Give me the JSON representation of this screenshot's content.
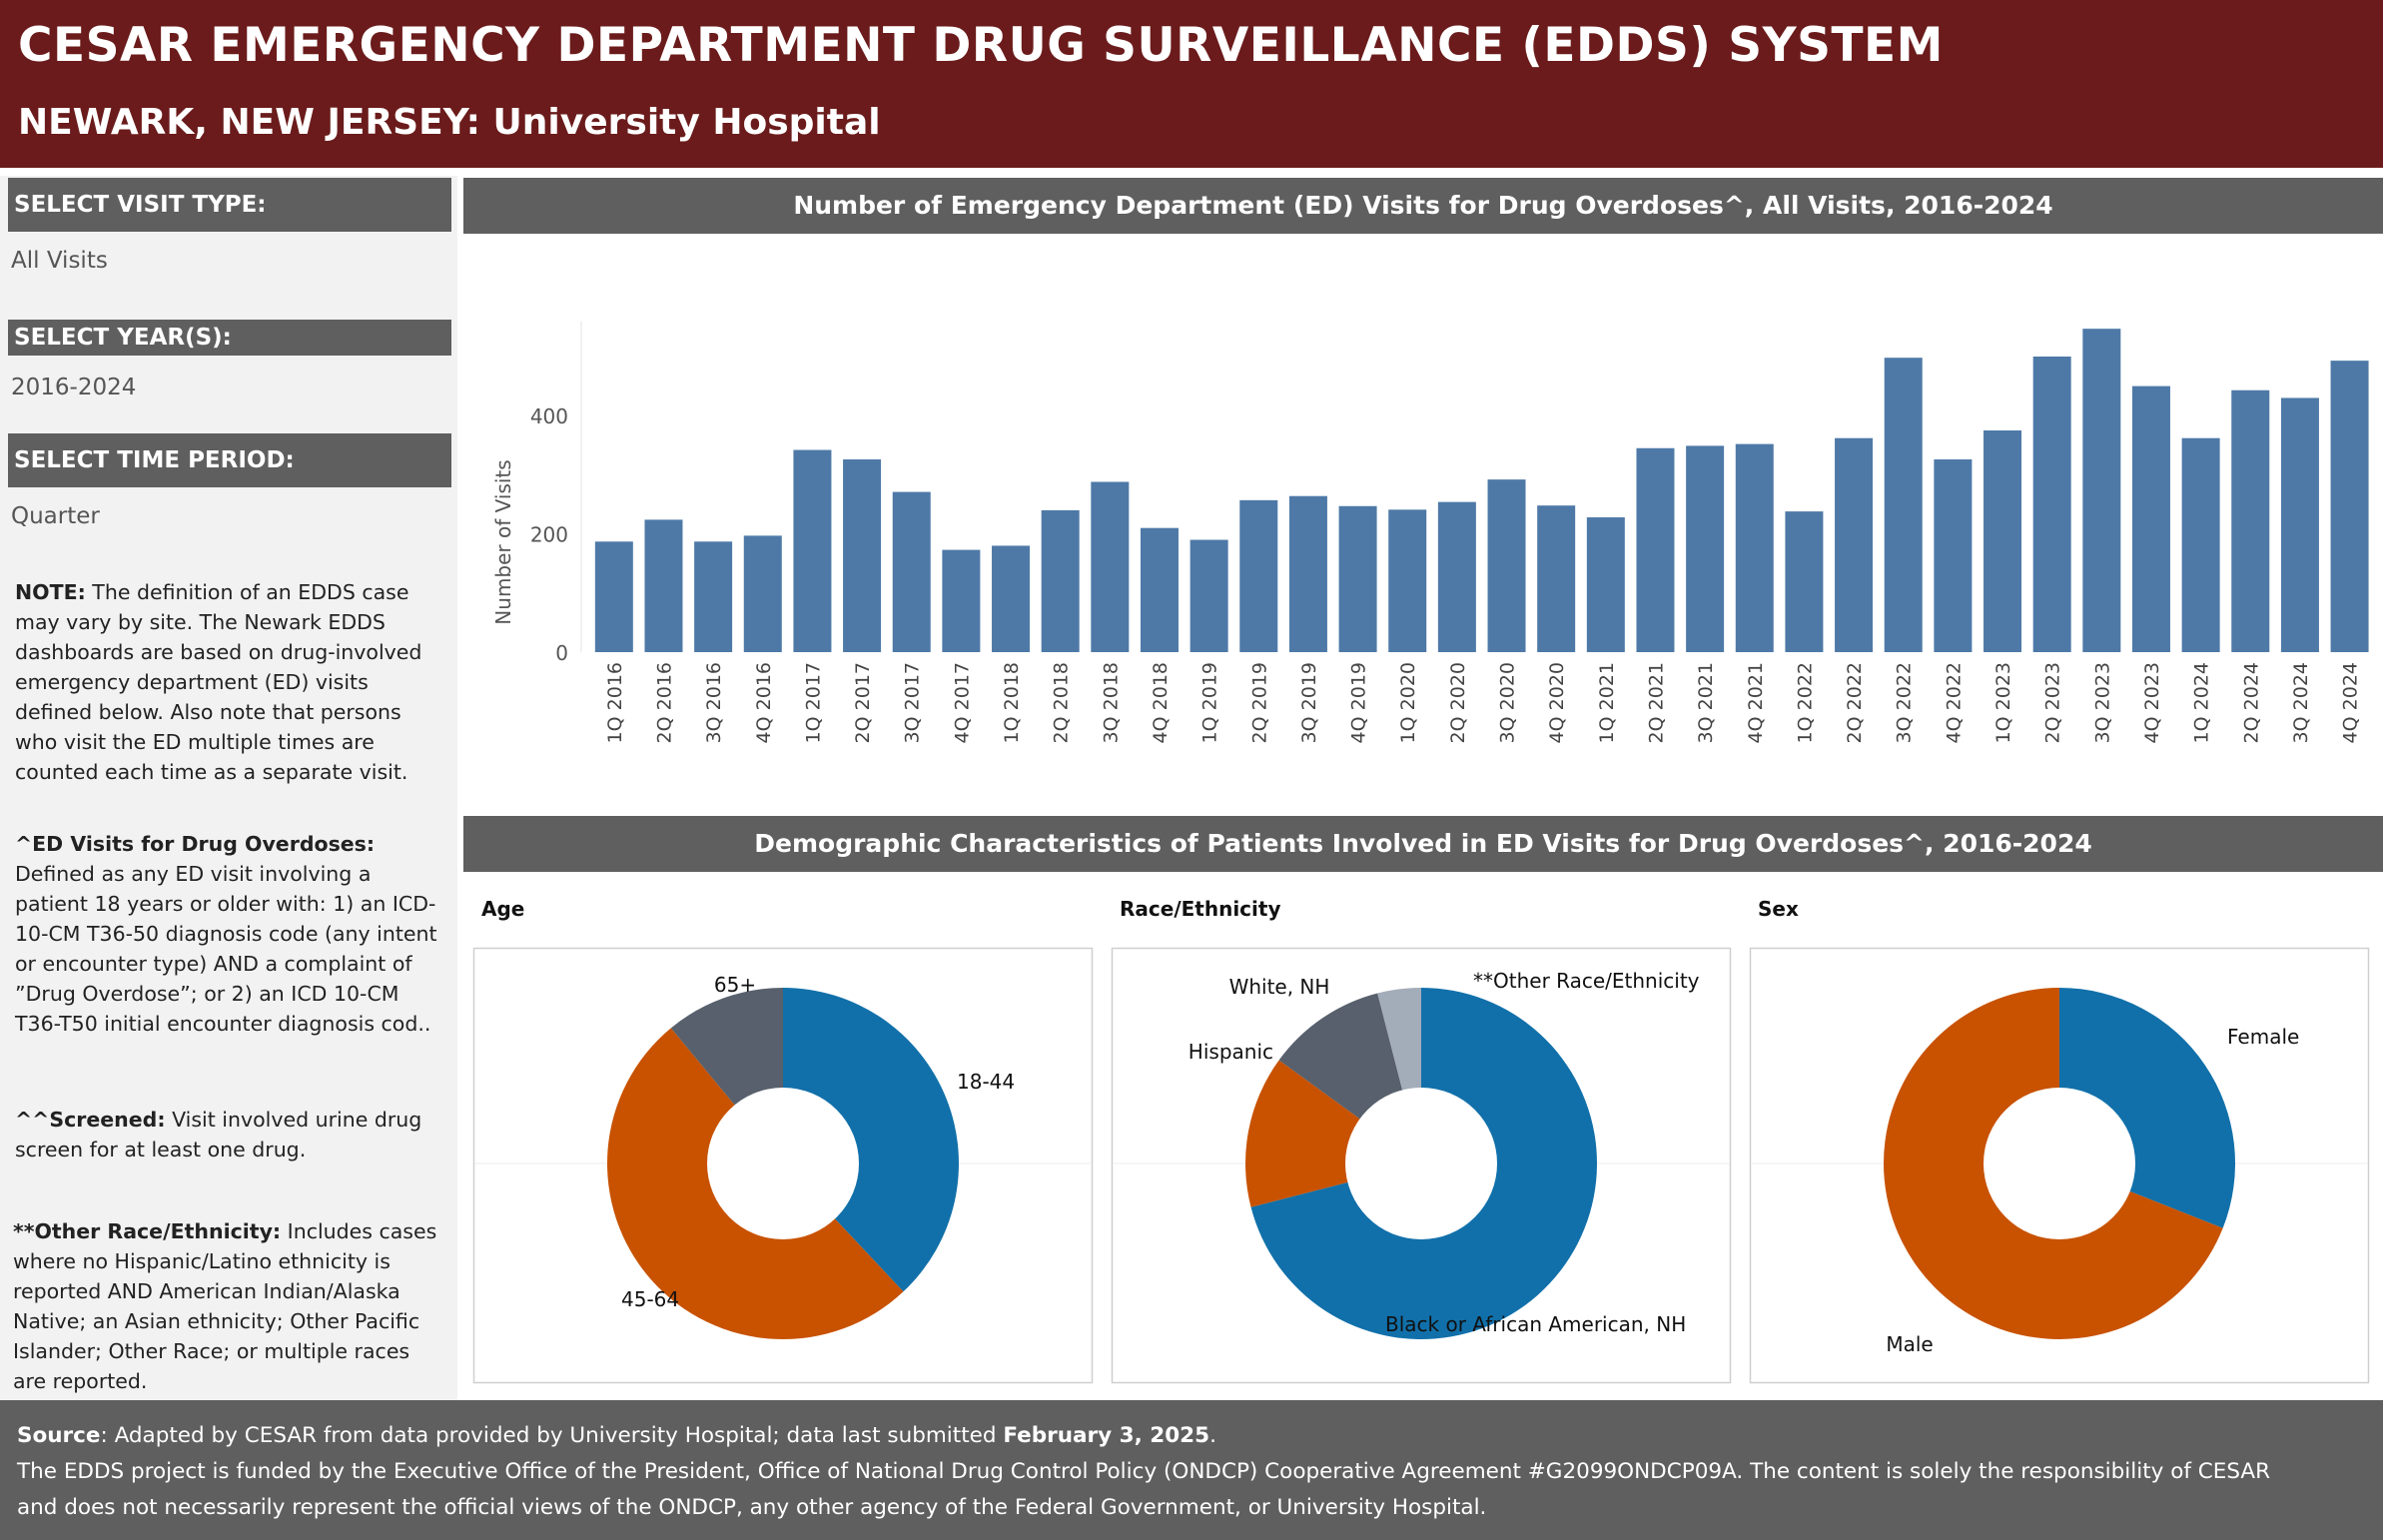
{
  "header": {
    "title": "CESAR EMERGENCY DEPARTMENT DRUG SURVEILLANCE (EDDS) SYSTEM",
    "subtitle": "NEWARK, NEW JERSEY: University Hospital"
  },
  "sidebar": {
    "visit_type_label": "SELECT VISIT TYPE:",
    "visit_type_value": "All Visits",
    "years_label": "SELECT YEAR(S):",
    "years_value": "2016-2024",
    "period_label": "SELECT TIME PERIOD:",
    "period_value": "Quarter",
    "notes": [
      {
        "head": "NOTE:",
        "text": " The definition of an EDDS case may vary by site. The Newark EDDS dashboards are based on drug-involved emergency department (ED) visits defined below. Also note that persons who visit the ED multiple times are counted each time as a separate visit."
      },
      {
        "head": "^ED Visits for Drug Overdoses:",
        "text": " Defined as any ED visit involving a patient 18 years or older with: 1) an ICD-10-CM T36-50 diagnosis code (any intent or encounter type) AND a complaint of ”Drug Overdose”; or  2) an ICD 10-CM T36-T50 initial encounter diagnosis cod.."
      },
      {
        "head": "^^Screened:",
        "text": " Visit involved urine drug screen for at least one drug."
      },
      {
        "head": "**Other Race/Ethnicity:",
        "text": " Includes cases where no Hispanic/Latino ethnicity is reported AND American Indian/Alaska Native; an Asian ethnicity; Other Pacific Islander; Other Race; or multiple races are reported."
      }
    ]
  },
  "bar_panel": {
    "title": "Number of Emergency Department (ED) Visits for Drug Overdoses^, All Visits, 2016-2024"
  },
  "demo_panel": {
    "title": "Demographic Characteristics of Patients Involved in ED Visits for Drug Overdoses^, 2016-2024"
  },
  "footer": {
    "source_head": "Source",
    "source_text": ": Adapted by CESAR from data provided by University Hospital; data last submitted ",
    "source_date": "February 3, 2025",
    "source_end": ".",
    "line2": "The EDDS project is funded by the Executive Office of the President, Office of National Drug Control Policy (ONDCP) Cooperative Agreement #G2099ONDCP09A. The content is solely the responsibility of CESAR",
    "line3": "and does not necessarily represent the official views of the ONDCP, any other agency of the Federal Government, or University Hospital."
  },
  "colors": {
    "bar": "#4e79a7",
    "blue": "#1170aa",
    "orange": "#c85200",
    "dark_gray": "#57606c",
    "light_gray": "#a3acb9",
    "header_bg": "#6b1b1b",
    "panel_gray": "#5f5f5f"
  },
  "chart_data": [
    {
      "type": "bar",
      "ylabel": "Number of Visits",
      "yticks": [
        0,
        200,
        400
      ],
      "ylim": [
        0,
        560
      ],
      "grid": false,
      "categories": [
        "1Q 2016",
        "2Q 2016",
        "3Q 2016",
        "4Q 2016",
        "1Q 2017",
        "2Q 2017",
        "3Q 2017",
        "4Q 2017",
        "1Q 2018",
        "2Q 2018",
        "3Q 2018",
        "4Q 2018",
        "1Q 2019",
        "2Q 2019",
        "3Q 2019",
        "4Q 2019",
        "1Q 2020",
        "2Q 2020",
        "3Q 2020",
        "4Q 2020",
        "1Q 2021",
        "2Q 2021",
        "3Q 2021",
        "4Q 2021",
        "1Q 2022",
        "2Q 2022",
        "3Q 2022",
        "4Q 2022",
        "1Q 2023",
        "2Q 2023",
        "3Q 2023",
        "4Q 2023",
        "1Q 2024",
        "2Q 2024",
        "3Q 2024",
        "4Q 2024"
      ],
      "values": [
        187,
        224,
        187,
        197,
        342,
        326,
        271,
        173,
        180,
        240,
        288,
        210,
        190,
        257,
        264,
        247,
        241,
        254,
        292,
        248,
        228,
        345,
        349,
        352,
        238,
        362,
        498,
        326,
        375,
        500,
        547,
        450,
        362,
        443,
        430,
        493
      ]
    },
    {
      "type": "pie",
      "title": "Age",
      "labels": [
        "18-44",
        "45-64",
        "65+"
      ],
      "values": [
        38,
        51,
        11
      ],
      "colors": [
        "#1170aa",
        "#c85200",
        "#57606c"
      ]
    },
    {
      "type": "pie",
      "title": "Race/Ethnicity",
      "labels": [
        "Black or African American, NH",
        "Hispanic",
        "White, NH",
        "**Other Race/Ethnicity"
      ],
      "values": [
        71,
        14,
        11,
        4
      ],
      "colors": [
        "#1170aa",
        "#c85200",
        "#57606c",
        "#a3acb9"
      ]
    },
    {
      "type": "pie",
      "title": "Sex",
      "labels": [
        "Female",
        "Male"
      ],
      "values": [
        31,
        69
      ],
      "colors": [
        "#1170aa",
        "#c85200"
      ]
    }
  ]
}
